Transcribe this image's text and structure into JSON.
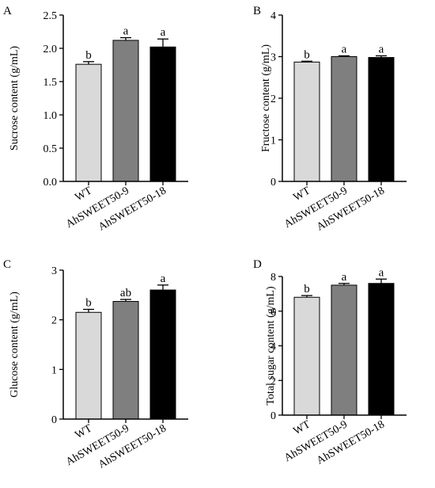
{
  "figure": {
    "colors": {
      "WT": "#d9d9d9",
      "AhSWEET50-9": "#7f7f7f",
      "AhSWEET50-18": "#000000",
      "axis": "#000000",
      "error_bar": "#000000"
    }
  },
  "chart_data": [
    {
      "panel": "A",
      "type": "bar",
      "categories": [
        "WT",
        "AhSWEET50-9",
        "AhSWEET50-18"
      ],
      "values": [
        1.76,
        2.12,
        2.02
      ],
      "errors": [
        0.04,
        0.04,
        0.12
      ],
      "significance": [
        "b",
        "a",
        "a"
      ],
      "ylabel": "Sucrose content (g/mL)",
      "ylim": [
        0,
        2.5
      ],
      "yticks": [
        "0.0",
        "0.5",
        "1.0",
        "1.5",
        "2.0",
        "2.5"
      ],
      "grid": false,
      "legend": false
    },
    {
      "panel": "B",
      "type": "bar",
      "categories": [
        "WT",
        "AhSWEET50-9",
        "AhSWEET50-18"
      ],
      "values": [
        2.87,
        3.0,
        2.98
      ],
      "errors": [
        0.02,
        0.02,
        0.04
      ],
      "significance": [
        "b",
        "a",
        "a"
      ],
      "ylabel": "Fructose content (g/mL)",
      "ylim": [
        0,
        4
      ],
      "yticks": [
        "0",
        "1",
        "2",
        "3",
        "4"
      ],
      "grid": false,
      "legend": false
    },
    {
      "panel": "C",
      "type": "bar",
      "categories": [
        "WT",
        "AhSWEET50-9",
        "AhSWEET50-18"
      ],
      "values": [
        2.15,
        2.37,
        2.6
      ],
      "errors": [
        0.06,
        0.04,
        0.1
      ],
      "significance": [
        "b",
        "ab",
        "a"
      ],
      "ylabel": "Glucose content (g/mL)",
      "ylim": [
        0,
        3
      ],
      "yticks": [
        "0",
        "1",
        "2",
        "3"
      ],
      "grid": false,
      "legend": false
    },
    {
      "panel": "D",
      "type": "bar",
      "categories": [
        "WT",
        "AhSWEET50-9",
        "AhSWEET50-18"
      ],
      "values": [
        6.8,
        7.5,
        7.6
      ],
      "errors": [
        0.1,
        0.1,
        0.25
      ],
      "significance": [
        "b",
        "a",
        "a"
      ],
      "ylabel": "Total sugar content (g/mL)",
      "ylim": [
        0,
        8
      ],
      "yticks": [
        "0",
        "2",
        "4",
        "6",
        "8"
      ],
      "grid": false,
      "legend": false
    }
  ]
}
